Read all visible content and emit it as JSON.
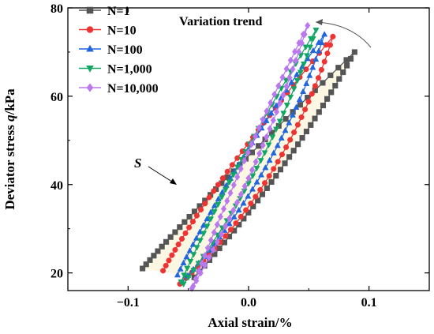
{
  "chart_data": {
    "type": "line",
    "title": "",
    "xlabel": "Axial strain/%",
    "ylabel_prefix": "Deviator stress ",
    "ylabel_italic": "q",
    "ylabel_suffix": "/kPa",
    "xlim": [
      -0.15,
      0.15
    ],
    "ylim": [
      16,
      80
    ],
    "x_ticks": [
      {
        "value": -0.1,
        "label": "−0.1"
      },
      {
        "value": 0.0,
        "label": "0.0"
      },
      {
        "value": 0.1,
        "label": "0.1"
      }
    ],
    "y_ticks": [
      {
        "value": 20,
        "label": "20"
      },
      {
        "value": 40,
        "label": "40"
      },
      {
        "value": 60,
        "label": "60"
      },
      {
        "value": 80,
        "label": "80"
      }
    ],
    "grid": false,
    "legend_position": "top-left",
    "area_fill": "#fbf7e3",
    "annotations": {
      "variation_trend": "Variation trend",
      "s_label": "S"
    },
    "series": [
      {
        "name": "N=1",
        "marker": "square",
        "color": "#555555",
        "loop": {
          "start": [
            -0.088,
            21
          ],
          "peak": [
            0.088,
            70
          ],
          "min": [
            -0.045,
            19
          ],
          "up_bulge": -3.5,
          "down_bulge": 1.0
        },
        "markers": 72
      },
      {
        "name": "N=10",
        "marker": "circle",
        "color": "#ee3333",
        "loop": {
          "start": [
            -0.071,
            20.5
          ],
          "peak": [
            0.07,
            73.5
          ],
          "min": [
            -0.057,
            17.5
          ],
          "up_bulge": -3.0,
          "down_bulge": 2.5
        },
        "markers": 70
      },
      {
        "name": "N=100",
        "marker": "triangle-up",
        "color": "#2266dd",
        "loop": {
          "start": [
            -0.059,
            19.5
          ],
          "peak": [
            0.063,
            74
          ],
          "min": [
            -0.055,
            18
          ],
          "up_bulge": -2.0,
          "down_bulge": 2.0
        },
        "markers": 68
      },
      {
        "name": "N=1,000",
        "marker": "triangle-down",
        "color": "#11a664",
        "loop": {
          "start": [
            -0.056,
            18
          ],
          "peak": [
            0.056,
            75
          ],
          "min": [
            -0.054,
            17.5
          ],
          "up_bulge": -1.5,
          "down_bulge": 1.5
        },
        "markers": 66
      },
      {
        "name": "N=10,000",
        "marker": "diamond",
        "color": "#bb77ee",
        "loop": {
          "start": [
            -0.046,
            17
          ],
          "peak": [
            0.049,
            76
          ],
          "min": [
            -0.047,
            16.5
          ],
          "up_bulge": -1.0,
          "down_bulge": 1.0
        },
        "markers": 64
      }
    ]
  }
}
